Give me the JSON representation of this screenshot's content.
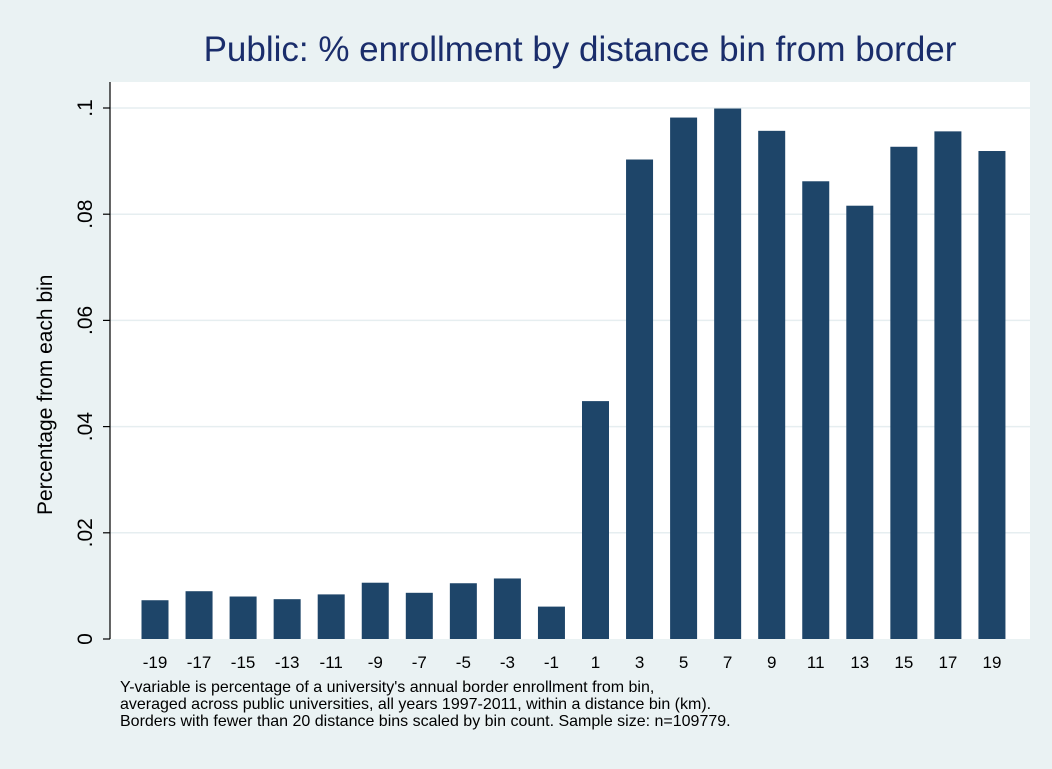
{
  "chart_data": {
    "type": "bar",
    "title": "Public: % enrollment by distance bin from border",
    "xlabel": "",
    "ylabel": "Percentage from each bin",
    "ylim": [
      0,
      0.1
    ],
    "yticks": [
      "0",
      ".02",
      ".04",
      ".06",
      ".08",
      ".1"
    ],
    "ytick_values": [
      0,
      0.02,
      0.04,
      0.06,
      0.08,
      0.1
    ],
    "categories": [
      "-19",
      "-17",
      "-15",
      "-13",
      "-11",
      "-9",
      "-7",
      "-5",
      "-3",
      "-1",
      "1",
      "3",
      "5",
      "7",
      "9",
      "11",
      "13",
      "15",
      "17",
      "19"
    ],
    "values": [
      0.0073,
      0.009,
      0.008,
      0.0075,
      0.0084,
      0.0106,
      0.0087,
      0.0105,
      0.0114,
      0.0061,
      0.0448,
      0.0903,
      0.0982,
      0.0999,
      0.0957,
      0.0862,
      0.0816,
      0.0927,
      0.0956,
      0.0919
    ],
    "bar_color": "#1e4569",
    "grid": true,
    "legend": "none"
  },
  "note": [
    "Y-variable is percentage of a university's annual border enrollment from bin,",
    "averaged across public universities, all years 1997-2011, within a distance bin (km).",
    "Borders with fewer than 20 distance bins scaled by bin count. Sample size: n=109779."
  ]
}
